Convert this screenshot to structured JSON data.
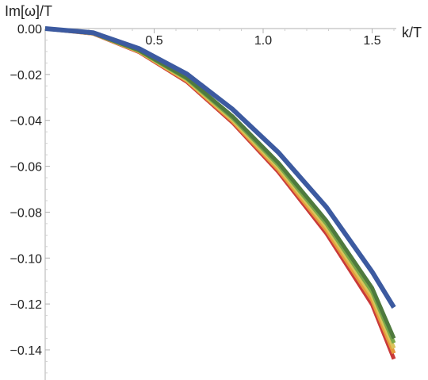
{
  "chart_data": {
    "type": "line",
    "xlabel": "k/T",
    "ylabel": "Im[ω]/T",
    "xlim": [
      0,
      1.6
    ],
    "ylim": [
      -0.15,
      0.0
    ],
    "xticks": [
      0.5,
      1.0,
      1.5
    ],
    "xtick_labels": [
      "0.5",
      "1.0",
      "1.5"
    ],
    "yticks": [
      0.0,
      -0.02,
      -0.04,
      -0.06,
      -0.08,
      -0.1,
      -0.12,
      -0.14
    ],
    "ytick_labels": [
      "0.00",
      "−0.02",
      "−0.04",
      "−0.06",
      "−0.08",
      "−0.10",
      "−0.12",
      "−0.14"
    ],
    "x": [
      0,
      0.22,
      0.43,
      0.65,
      0.86,
      1.07,
      1.29,
      1.5,
      1.6
    ],
    "series": [
      {
        "color": "#c93a3a",
        "values": [
          0,
          -0.0022,
          -0.0102,
          -0.0232,
          -0.041,
          -0.0625,
          -0.0893,
          -0.1203,
          -0.144
        ]
      },
      {
        "color": "#e69a3c",
        "values": [
          0,
          -0.0021,
          -0.01,
          -0.0227,
          -0.0403,
          -0.0615,
          -0.0878,
          -0.1183,
          -0.1415
        ]
      },
      {
        "color": "#d9c45a",
        "values": [
          0,
          -0.0021,
          -0.0098,
          -0.0223,
          -0.0396,
          -0.0605,
          -0.0864,
          -0.1165,
          -0.1393
        ]
      },
      {
        "color": "#7aa84a",
        "values": [
          0,
          -0.002,
          -0.0096,
          -0.0219,
          -0.039,
          -0.0595,
          -0.085,
          -0.1147,
          -0.137
        ]
      },
      {
        "color": "#4f7a3e",
        "values": [
          0,
          -0.002,
          -0.0094,
          -0.0215,
          -0.0383,
          -0.0585,
          -0.0837,
          -0.113,
          -0.135
        ]
      },
      {
        "color": "#3c5aa0",
        "values": [
          0,
          -0.0018,
          -0.0087,
          -0.0198,
          -0.0352,
          -0.054,
          -0.0778,
          -0.106,
          -0.1215
        ]
      }
    ],
    "colors": {
      "axis": "#b0b0b0",
      "text": "#222222"
    },
    "grid": false
  }
}
